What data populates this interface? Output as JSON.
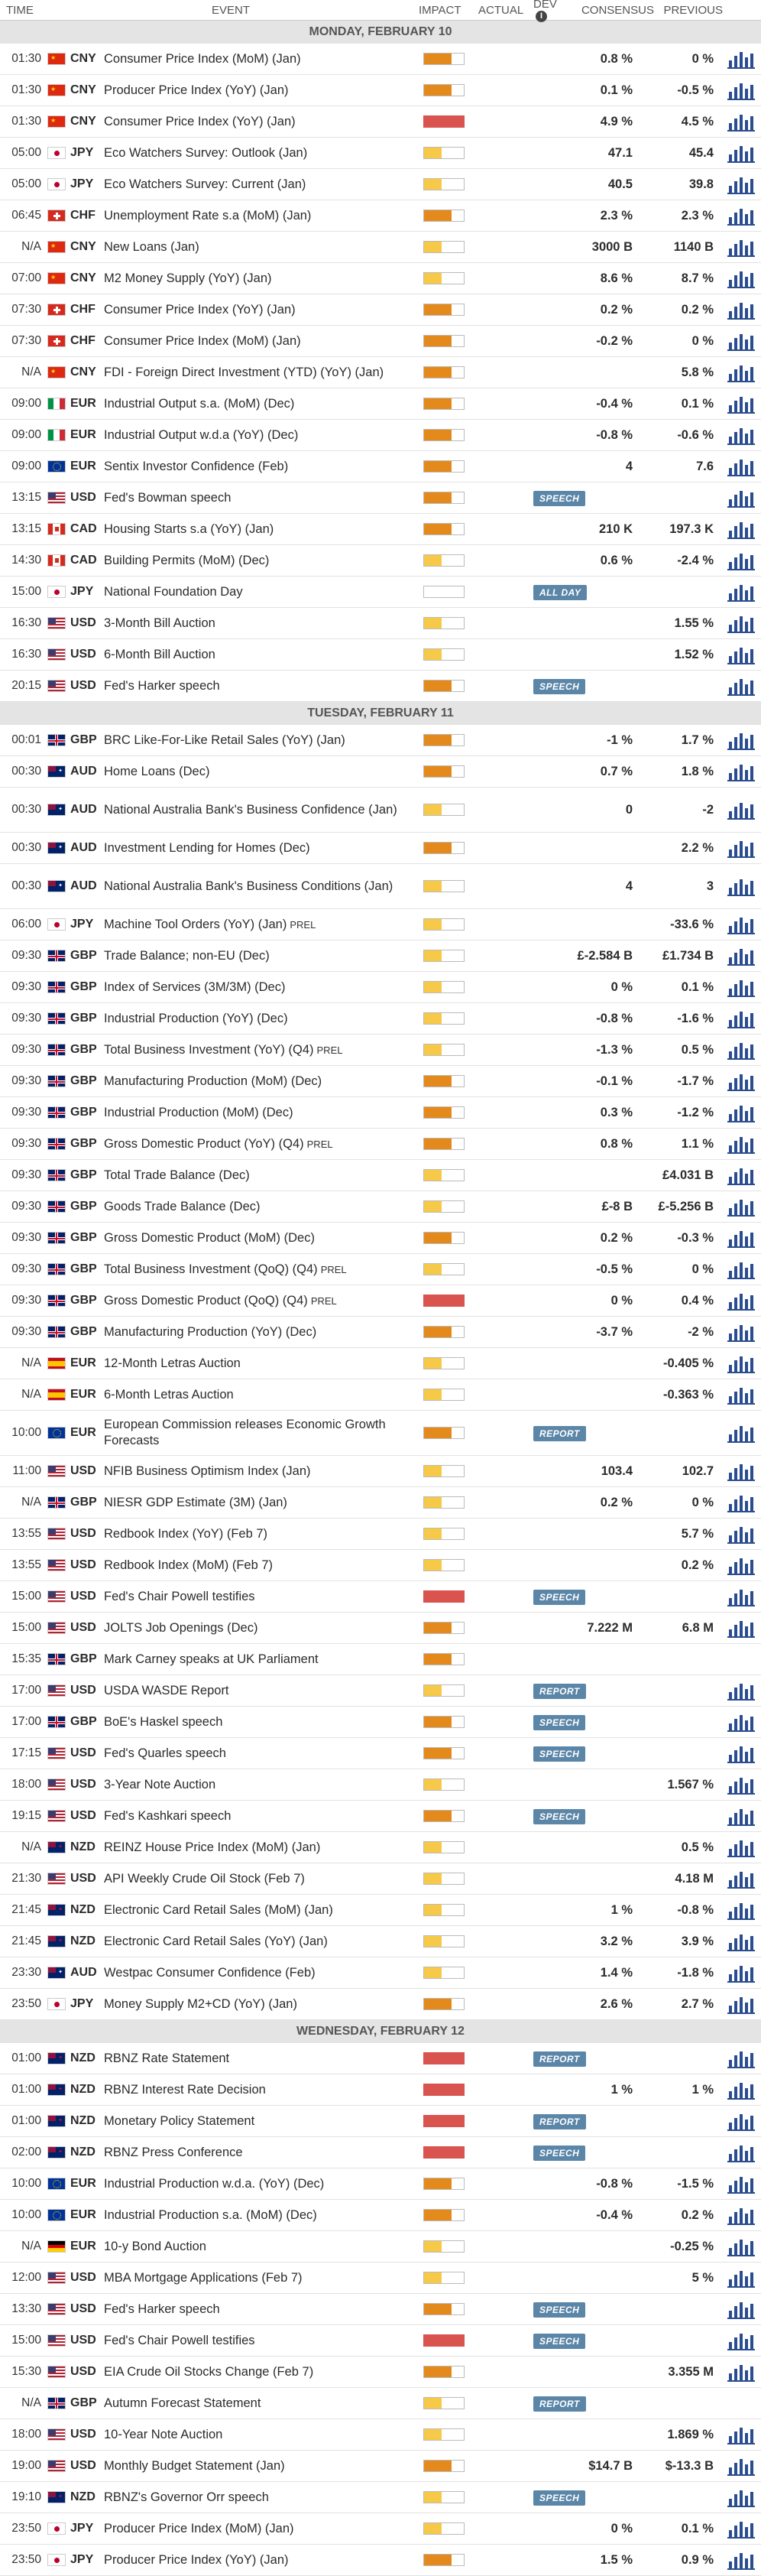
{
  "header": {
    "time": "TIME",
    "event": "EVENT",
    "impact": "IMPACT",
    "actual": "ACTUAL",
    "dev": "DEV",
    "consensus": "CONSENSUS",
    "previous": "PREVIOUS"
  },
  "days": [
    {
      "title": "MONDAY, FEBRUARY 10",
      "events": [
        {
          "time": "01:30",
          "flag": "cn",
          "ccy": "CNY",
          "event": "Consumer Price Index (MoM) (Jan)",
          "impact": "med",
          "cons": "0.8 %",
          "prev": "0 %"
        },
        {
          "time": "01:30",
          "flag": "cn",
          "ccy": "CNY",
          "event": "Producer Price Index (YoY) (Jan)",
          "impact": "med",
          "cons": "0.1 %",
          "prev": "-0.5 %"
        },
        {
          "time": "01:30",
          "flag": "cn",
          "ccy": "CNY",
          "event": "Consumer Price Index (YoY) (Jan)",
          "impact": "high",
          "cons": "4.9 %",
          "prev": "4.5 %"
        },
        {
          "time": "05:00",
          "flag": "jp",
          "ccy": "JPY",
          "event": "Eco Watchers Survey: Outlook (Jan)",
          "impact": "low",
          "cons": "47.1",
          "prev": "45.4"
        },
        {
          "time": "05:00",
          "flag": "jp",
          "ccy": "JPY",
          "event": "Eco Watchers Survey: Current (Jan)",
          "impact": "low",
          "cons": "40.5",
          "prev": "39.8"
        },
        {
          "time": "06:45",
          "flag": "ch",
          "ccy": "CHF",
          "event": "Unemployment Rate s.a (MoM) (Jan)",
          "impact": "med",
          "cons": "2.3 %",
          "prev": "2.3 %"
        },
        {
          "time": "N/A",
          "flag": "cn",
          "ccy": "CNY",
          "event": "New Loans (Jan)",
          "impact": "low",
          "cons": "3000 B",
          "prev": "1140 B"
        },
        {
          "time": "07:00",
          "flag": "cn",
          "ccy": "CNY",
          "event": "M2 Money Supply (YoY) (Jan)",
          "impact": "low",
          "cons": "8.6 %",
          "prev": "8.7 %"
        },
        {
          "time": "07:30",
          "flag": "ch",
          "ccy": "CHF",
          "event": "Consumer Price Index (YoY) (Jan)",
          "impact": "med",
          "cons": "0.2 %",
          "prev": "0.2 %"
        },
        {
          "time": "07:30",
          "flag": "ch",
          "ccy": "CHF",
          "event": "Consumer Price Index (MoM) (Jan)",
          "impact": "med",
          "cons": "-0.2 %",
          "prev": "0 %"
        },
        {
          "time": "N/A",
          "flag": "cn",
          "ccy": "CNY",
          "event": "FDI - Foreign Direct Investment (YTD) (YoY) (Jan)",
          "impact": "med",
          "cons": "",
          "prev": "5.8 %"
        },
        {
          "time": "09:00",
          "flag": "it",
          "ccy": "EUR",
          "event": "Industrial Output s.a. (MoM) (Dec)",
          "impact": "med",
          "cons": "-0.4 %",
          "prev": "0.1 %"
        },
        {
          "time": "09:00",
          "flag": "it",
          "ccy": "EUR",
          "event": "Industrial Output w.d.a (YoY) (Dec)",
          "impact": "med",
          "cons": "-0.8 %",
          "prev": "-0.6 %"
        },
        {
          "time": "09:00",
          "flag": "eu",
          "ccy": "EUR",
          "event": "Sentix Investor Confidence (Feb)",
          "impact": "med",
          "cons": "4",
          "prev": "7.6"
        },
        {
          "time": "13:15",
          "flag": "us",
          "ccy": "USD",
          "event": "Fed's Bowman speech",
          "impact": "med",
          "tag": "SPEECH"
        },
        {
          "time": "13:15",
          "flag": "ca",
          "ccy": "CAD",
          "event": "Housing Starts s.a (YoY) (Jan)",
          "impact": "med",
          "cons": "210 K",
          "prev": "197.3 K"
        },
        {
          "time": "14:30",
          "flag": "ca",
          "ccy": "CAD",
          "event": "Building Permits (MoM) (Dec)",
          "impact": "low",
          "cons": "0.6 %",
          "prev": "-2.4 %"
        },
        {
          "time": "15:00",
          "flag": "jp",
          "ccy": "JPY",
          "event": "National Foundation Day",
          "impact": "none",
          "tag": "ALL DAY"
        },
        {
          "time": "16:30",
          "flag": "us",
          "ccy": "USD",
          "event": "3-Month Bill Auction",
          "impact": "low",
          "cons": "",
          "prev": "1.55 %"
        },
        {
          "time": "16:30",
          "flag": "us",
          "ccy": "USD",
          "event": "6-Month Bill Auction",
          "impact": "low",
          "cons": "",
          "prev": "1.52 %"
        },
        {
          "time": "20:15",
          "flag": "us",
          "ccy": "USD",
          "event": "Fed's Harker speech",
          "impact": "med",
          "tag": "SPEECH"
        }
      ]
    },
    {
      "title": "TUESDAY, FEBRUARY 11",
      "events": [
        {
          "time": "00:01",
          "flag": "gb",
          "ccy": "GBP",
          "event": "BRC Like-For-Like Retail Sales (YoY) (Jan)",
          "impact": "med",
          "cons": "-1 %",
          "prev": "1.7 %"
        },
        {
          "time": "00:30",
          "flag": "au",
          "ccy": "AUD",
          "event": "Home Loans (Dec)",
          "impact": "med",
          "cons": "0.7 %",
          "prev": "1.8 %"
        },
        {
          "time": "00:30",
          "flag": "au",
          "ccy": "AUD",
          "event": "National Australia Bank's Business Confidence (Jan)",
          "impact": "low",
          "cons": "0",
          "prev": "-2",
          "tall": true
        },
        {
          "time": "00:30",
          "flag": "au",
          "ccy": "AUD",
          "event": "Investment Lending for Homes (Dec)",
          "impact": "med",
          "cons": "",
          "prev": "2.2 %"
        },
        {
          "time": "00:30",
          "flag": "au",
          "ccy": "AUD",
          "event": "National Australia Bank's Business Conditions (Jan)",
          "impact": "low",
          "cons": "4",
          "prev": "3",
          "tall": true
        },
        {
          "time": "06:00",
          "flag": "jp",
          "ccy": "JPY",
          "event": "Machine Tool Orders (YoY) (Jan)",
          "prel": "PREL",
          "impact": "low",
          "cons": "",
          "prev": "-33.6 %"
        },
        {
          "time": "09:30",
          "flag": "gb",
          "ccy": "GBP",
          "event": "Trade Balance; non-EU (Dec)",
          "impact": "low",
          "cons": "£-2.584 B",
          "prev": "£1.734 B"
        },
        {
          "time": "09:30",
          "flag": "gb",
          "ccy": "GBP",
          "event": "Index of Services (3M/3M) (Dec)",
          "impact": "low",
          "cons": "0 %",
          "prev": "0.1 %"
        },
        {
          "time": "09:30",
          "flag": "gb",
          "ccy": "GBP",
          "event": "Industrial Production (YoY) (Dec)",
          "impact": "low",
          "cons": "-0.8 %",
          "prev": "-1.6 %"
        },
        {
          "time": "09:30",
          "flag": "gb",
          "ccy": "GBP",
          "event": "Total Business Investment (YoY) (Q4)",
          "prel": "PREL",
          "impact": "low",
          "cons": "-1.3 %",
          "prev": "0.5 %"
        },
        {
          "time": "09:30",
          "flag": "gb",
          "ccy": "GBP",
          "event": "Manufacturing Production (MoM) (Dec)",
          "impact": "med",
          "cons": "-0.1 %",
          "prev": "-1.7 %"
        },
        {
          "time": "09:30",
          "flag": "gb",
          "ccy": "GBP",
          "event": "Industrial Production (MoM) (Dec)",
          "impact": "med",
          "cons": "0.3 %",
          "prev": "-1.2 %"
        },
        {
          "time": "09:30",
          "flag": "gb",
          "ccy": "GBP",
          "event": "Gross Domestic Product (YoY) (Q4)",
          "prel": "PREL",
          "impact": "med",
          "cons": "0.8 %",
          "prev": "1.1 %"
        },
        {
          "time": "09:30",
          "flag": "gb",
          "ccy": "GBP",
          "event": "Total Trade Balance (Dec)",
          "impact": "low",
          "cons": "",
          "prev": "£4.031 B"
        },
        {
          "time": "09:30",
          "flag": "gb",
          "ccy": "GBP",
          "event": "Goods Trade Balance (Dec)",
          "impact": "low",
          "cons": "£-8 B",
          "prev": "£-5.256 B"
        },
        {
          "time": "09:30",
          "flag": "gb",
          "ccy": "GBP",
          "event": "Gross Domestic Product (MoM) (Dec)",
          "impact": "med",
          "cons": "0.2 %",
          "prev": "-0.3 %"
        },
        {
          "time": "09:30",
          "flag": "gb",
          "ccy": "GBP",
          "event": "Total Business Investment (QoQ) (Q4)",
          "prel": "PREL",
          "impact": "low",
          "cons": "-0.5 %",
          "prev": "0 %"
        },
        {
          "time": "09:30",
          "flag": "gb",
          "ccy": "GBP",
          "event": "Gross Domestic Product (QoQ) (Q4)",
          "prel": "PREL",
          "impact": "high",
          "cons": "0 %",
          "prev": "0.4 %"
        },
        {
          "time": "09:30",
          "flag": "gb",
          "ccy": "GBP",
          "event": "Manufacturing Production (YoY) (Dec)",
          "impact": "med",
          "cons": "-3.7 %",
          "prev": "-2 %"
        },
        {
          "time": "N/A",
          "flag": "es",
          "ccy": "EUR",
          "event": "12-Month Letras Auction",
          "impact": "low",
          "cons": "",
          "prev": "-0.405 %"
        },
        {
          "time": "N/A",
          "flag": "es",
          "ccy": "EUR",
          "event": "6-Month Letras Auction",
          "impact": "low",
          "cons": "",
          "prev": "-0.363 %"
        },
        {
          "time": "10:00",
          "flag": "eu",
          "ccy": "EUR",
          "event": "European Commission releases Economic Growth Forecasts",
          "impact": "med",
          "tag": "REPORT",
          "tall": true
        },
        {
          "time": "11:00",
          "flag": "us",
          "ccy": "USD",
          "event": "NFIB Business Optimism Index (Jan)",
          "impact": "low",
          "cons": "103.4",
          "prev": "102.7"
        },
        {
          "time": "N/A",
          "flag": "gb",
          "ccy": "GBP",
          "event": "NIESR GDP Estimate (3M) (Jan)",
          "impact": "low",
          "cons": "0.2 %",
          "prev": "0 %"
        },
        {
          "time": "13:55",
          "flag": "us",
          "ccy": "USD",
          "event": "Redbook Index (YoY) (Feb 7)",
          "impact": "low",
          "cons": "",
          "prev": "5.7 %"
        },
        {
          "time": "13:55",
          "flag": "us",
          "ccy": "USD",
          "event": "Redbook Index (MoM) (Feb 7)",
          "impact": "low",
          "cons": "",
          "prev": "0.2 %"
        },
        {
          "time": "15:00",
          "flag": "us",
          "ccy": "USD",
          "event": "Fed's Chair Powell testifies",
          "impact": "high",
          "tag": "SPEECH"
        },
        {
          "time": "15:00",
          "flag": "us",
          "ccy": "USD",
          "event": "JOLTS Job Openings (Dec)",
          "impact": "med",
          "cons": "7.222 M",
          "prev": "6.8 M"
        },
        {
          "time": "15:35",
          "flag": "gb",
          "ccy": "GBP",
          "event": "Mark Carney speaks at UK Parliament",
          "impact": "med"
        },
        {
          "time": "17:00",
          "flag": "us",
          "ccy": "USD",
          "event": "USDA WASDE Report",
          "impact": "low",
          "tag": "REPORT"
        },
        {
          "time": "17:00",
          "flag": "gb",
          "ccy": "GBP",
          "event": "BoE's Haskel speech",
          "impact": "med",
          "tag": "SPEECH"
        },
        {
          "time": "17:15",
          "flag": "us",
          "ccy": "USD",
          "event": "Fed's Quarles speech",
          "impact": "med",
          "tag": "SPEECH"
        },
        {
          "time": "18:00",
          "flag": "us",
          "ccy": "USD",
          "event": "3-Year Note Auction",
          "impact": "low",
          "cons": "",
          "prev": "1.567 %"
        },
        {
          "time": "19:15",
          "flag": "us",
          "ccy": "USD",
          "event": "Fed's Kashkari speech",
          "impact": "med",
          "tag": "SPEECH"
        },
        {
          "time": "N/A",
          "flag": "nz",
          "ccy": "NZD",
          "event": "REINZ House Price Index (MoM) (Jan)",
          "impact": "low",
          "cons": "",
          "prev": "0.5 %"
        },
        {
          "time": "21:30",
          "flag": "us",
          "ccy": "USD",
          "event": "API Weekly Crude Oil Stock (Feb 7)",
          "impact": "low",
          "cons": "",
          "prev": "4.18 M"
        },
        {
          "time": "21:45",
          "flag": "nz",
          "ccy": "NZD",
          "event": "Electronic Card Retail Sales (MoM) (Jan)",
          "impact": "low",
          "cons": "1 %",
          "prev": "-0.8 %"
        },
        {
          "time": "21:45",
          "flag": "nz",
          "ccy": "NZD",
          "event": "Electronic Card Retail Sales (YoY) (Jan)",
          "impact": "low",
          "cons": "3.2 %",
          "prev": "3.9 %"
        },
        {
          "time": "23:30",
          "flag": "au",
          "ccy": "AUD",
          "event": "Westpac Consumer Confidence (Feb)",
          "impact": "low",
          "cons": "1.4 %",
          "prev": "-1.8 %"
        },
        {
          "time": "23:50",
          "flag": "jp",
          "ccy": "JPY",
          "event": "Money Supply M2+CD (YoY) (Jan)",
          "impact": "med",
          "cons": "2.6 %",
          "prev": "2.7 %"
        }
      ]
    },
    {
      "title": "WEDNESDAY, FEBRUARY 12",
      "events": [
        {
          "time": "01:00",
          "flag": "nz",
          "ccy": "NZD",
          "event": "RBNZ Rate Statement",
          "impact": "high",
          "tag": "REPORT"
        },
        {
          "time": "01:00",
          "flag": "nz",
          "ccy": "NZD",
          "event": "RBNZ Interest Rate Decision",
          "impact": "high",
          "cons": "1 %",
          "prev": "1 %"
        },
        {
          "time": "01:00",
          "flag": "nz",
          "ccy": "NZD",
          "event": "Monetary Policy Statement",
          "impact": "high",
          "tag": "REPORT"
        },
        {
          "time": "02:00",
          "flag": "nz",
          "ccy": "NZD",
          "event": "RBNZ Press Conference",
          "impact": "high",
          "tag": "SPEECH"
        },
        {
          "time": "10:00",
          "flag": "eu",
          "ccy": "EUR",
          "event": "Industrial Production w.d.a. (YoY) (Dec)",
          "impact": "med",
          "cons": "-0.8 %",
          "prev": "-1.5 %"
        },
        {
          "time": "10:00",
          "flag": "eu",
          "ccy": "EUR",
          "event": "Industrial Production s.a. (MoM) (Dec)",
          "impact": "med",
          "cons": "-0.4 %",
          "prev": "0.2 %"
        },
        {
          "time": "N/A",
          "flag": "de",
          "ccy": "EUR",
          "event": "10-y Bond Auction",
          "impact": "low",
          "cons": "",
          "prev": "-0.25 %"
        },
        {
          "time": "12:00",
          "flag": "us",
          "ccy": "USD",
          "event": "MBA Mortgage Applications (Feb 7)",
          "impact": "low",
          "cons": "",
          "prev": "5 %"
        },
        {
          "time": "13:30",
          "flag": "us",
          "ccy": "USD",
          "event": "Fed's Harker speech",
          "impact": "med",
          "tag": "SPEECH"
        },
        {
          "time": "15:00",
          "flag": "us",
          "ccy": "USD",
          "event": "Fed's Chair Powell testifies",
          "impact": "high",
          "tag": "SPEECH"
        },
        {
          "time": "15:30",
          "flag": "us",
          "ccy": "USD",
          "event": "EIA Crude Oil Stocks Change (Feb 7)",
          "impact": "med",
          "cons": "",
          "prev": "3.355 M"
        },
        {
          "time": "N/A",
          "flag": "gb",
          "ccy": "GBP",
          "event": "Autumn Forecast Statement",
          "impact": "low",
          "tag": "REPORT",
          "nochart": true
        },
        {
          "time": "18:00",
          "flag": "us",
          "ccy": "USD",
          "event": "10-Year Note Auction",
          "impact": "low",
          "cons": "",
          "prev": "1.869 %"
        },
        {
          "time": "19:00",
          "flag": "us",
          "ccy": "USD",
          "event": "Monthly Budget Statement (Jan)",
          "impact": "med",
          "cons": "$14.7 B",
          "prev": "$-13.3 B"
        },
        {
          "time": "19:10",
          "flag": "nz",
          "ccy": "NZD",
          "event": "RBNZ's Governor Orr speech",
          "impact": "low",
          "tag": "SPEECH"
        },
        {
          "time": "23:50",
          "flag": "jp",
          "ccy": "JPY",
          "event": "Producer Price Index (MoM) (Jan)",
          "impact": "low",
          "cons": "0 %",
          "prev": "0.1 %"
        },
        {
          "time": "23:50",
          "flag": "jp",
          "ccy": "JPY",
          "event": "Producer Price Index (YoY) (Jan)",
          "impact": "med",
          "cons": "1.5 %",
          "prev": "0.9 %"
        }
      ]
    }
  ]
}
